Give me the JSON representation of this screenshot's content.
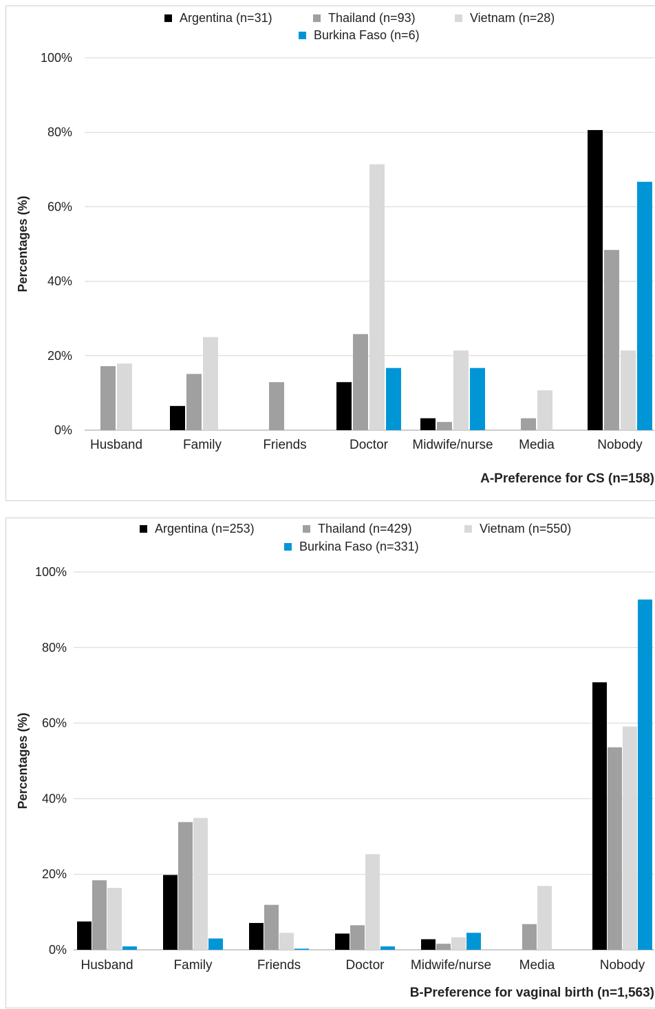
{
  "chart_data": [
    {
      "type": "bar",
      "title": "A-Preference for CS (n=158)",
      "ylabel": "Percentages (%)",
      "xlabel": "",
      "ylim": [
        0,
        100
      ],
      "yticks": [
        "0%",
        "20%",
        "40%",
        "60%",
        "80%",
        "100%"
      ],
      "grid": true,
      "legend": "top",
      "categories": [
        "Husband",
        "Family",
        "Friends",
        "Doctor",
        "Midwife/nurse",
        "Media",
        "Nobody"
      ],
      "series": [
        {
          "name": "Argentina (n=31)",
          "color": "#000000",
          "values": [
            0,
            6.5,
            0,
            12.9,
            3.2,
            0,
            80.6
          ]
        },
        {
          "name": "Thailand (n=93)",
          "color": "#a0a0a0",
          "values": [
            17.2,
            15.1,
            12.9,
            25.8,
            2.2,
            3.2,
            48.4
          ]
        },
        {
          "name": "Vietnam (n=28)",
          "color": "#d9d9d9",
          "values": [
            17.9,
            25.0,
            0,
            71.4,
            21.4,
            10.7,
            21.4
          ]
        },
        {
          "name": "Burkina Faso (n=6)",
          "color": "#0096d6",
          "values": [
            0,
            0,
            0,
            16.7,
            16.7,
            0,
            66.7
          ]
        }
      ]
    },
    {
      "type": "bar",
      "title": "B-Preference for vaginal birth (n=1,563)",
      "ylabel": "Percentages (%)",
      "xlabel": "",
      "ylim": [
        0,
        100
      ],
      "yticks": [
        "0%",
        "20%",
        "40%",
        "60%",
        "80%",
        "100%"
      ],
      "grid": true,
      "legend": "top",
      "categories": [
        "Husband",
        "Family",
        "Friends",
        "Doctor",
        "Midwife/nurse",
        "Media",
        "Nobody"
      ],
      "series": [
        {
          "name": "Argentina (n=253)",
          "color": "#000000",
          "values": [
            7.5,
            19.8,
            7.1,
            4.3,
            2.8,
            0,
            70.8
          ]
        },
        {
          "name": "Thailand (n=429)",
          "color": "#a0a0a0",
          "values": [
            18.4,
            33.8,
            11.9,
            6.5,
            1.6,
            6.8,
            53.6
          ]
        },
        {
          "name": "Vietnam (n=550)",
          "color": "#d9d9d9",
          "values": [
            16.4,
            34.9,
            4.5,
            25.3,
            3.3,
            16.9,
            59.1
          ]
        },
        {
          "name": "Burkina Faso (n=331)",
          "color": "#0096d6",
          "values": [
            0.9,
            3.0,
            0.3,
            0.9,
            4.5,
            0,
            92.7
          ]
        }
      ]
    }
  ]
}
